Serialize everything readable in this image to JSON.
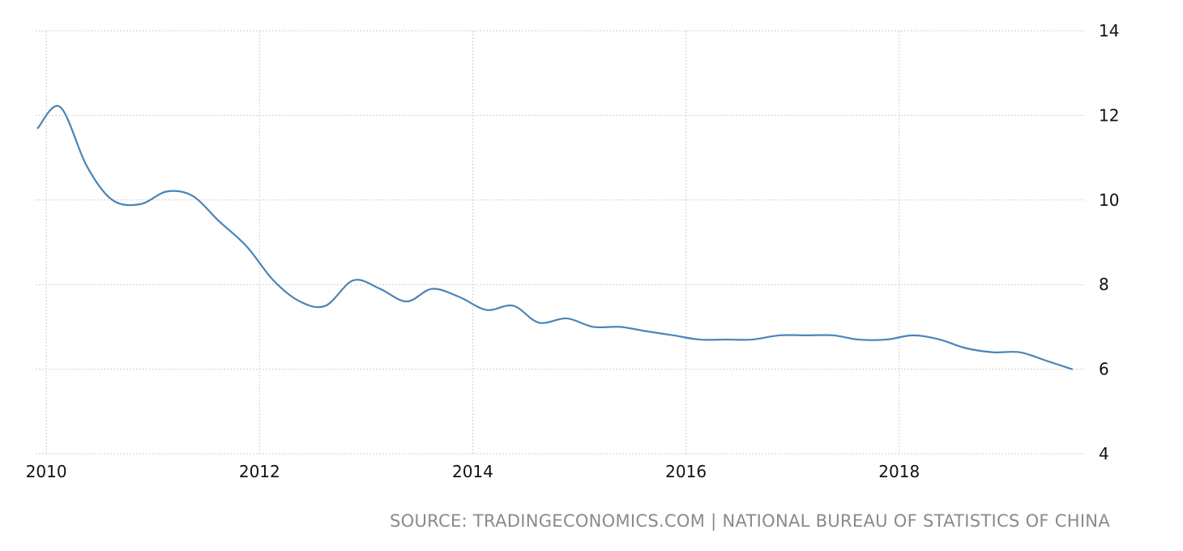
{
  "chart_data": {
    "type": "line",
    "title": "",
    "xlabel": "",
    "ylabel": "",
    "x_ticks": [
      "2010",
      "2012",
      "2014",
      "2016",
      "2018"
    ],
    "y_ticks": [
      "4",
      "6",
      "8",
      "10",
      "12",
      "14"
    ],
    "xlim": [
      2009.9,
      2019.75
    ],
    "ylim": [
      4,
      14
    ],
    "grid": true,
    "legend": "none",
    "y_axis_side": "right",
    "series": [
      {
        "color": "#4a85b8",
        "x": [
          2009.92,
          2010.13,
          2010.38,
          2010.62,
          2010.88,
          2011.13,
          2011.37,
          2011.62,
          2011.88,
          2012.13,
          2012.38,
          2012.62,
          2012.88,
          2013.13,
          2013.38,
          2013.62,
          2013.88,
          2014.13,
          2014.38,
          2014.62,
          2014.88,
          2015.13,
          2015.38,
          2015.62,
          2015.88,
          2016.13,
          2016.38,
          2016.62,
          2016.88,
          2017.13,
          2017.38,
          2017.62,
          2017.88,
          2018.13,
          2018.38,
          2018.62,
          2018.88,
          2019.13,
          2019.38,
          2019.62
        ],
        "y": [
          11.7,
          12.2,
          10.8,
          10.0,
          9.9,
          10.2,
          10.1,
          9.5,
          8.9,
          8.1,
          7.6,
          7.5,
          8.1,
          7.9,
          7.6,
          7.9,
          7.7,
          7.4,
          7.5,
          7.1,
          7.2,
          7.0,
          7.0,
          6.9,
          6.8,
          6.7,
          6.7,
          6.7,
          6.8,
          6.8,
          6.8,
          6.7,
          6.7,
          6.8,
          6.7,
          6.5,
          6.4,
          6.4,
          6.2,
          6.0
        ]
      }
    ]
  },
  "source": "SOURCE: TRADINGECONOMICS.COM | NATIONAL BUREAU OF STATISTICS OF CHINA"
}
